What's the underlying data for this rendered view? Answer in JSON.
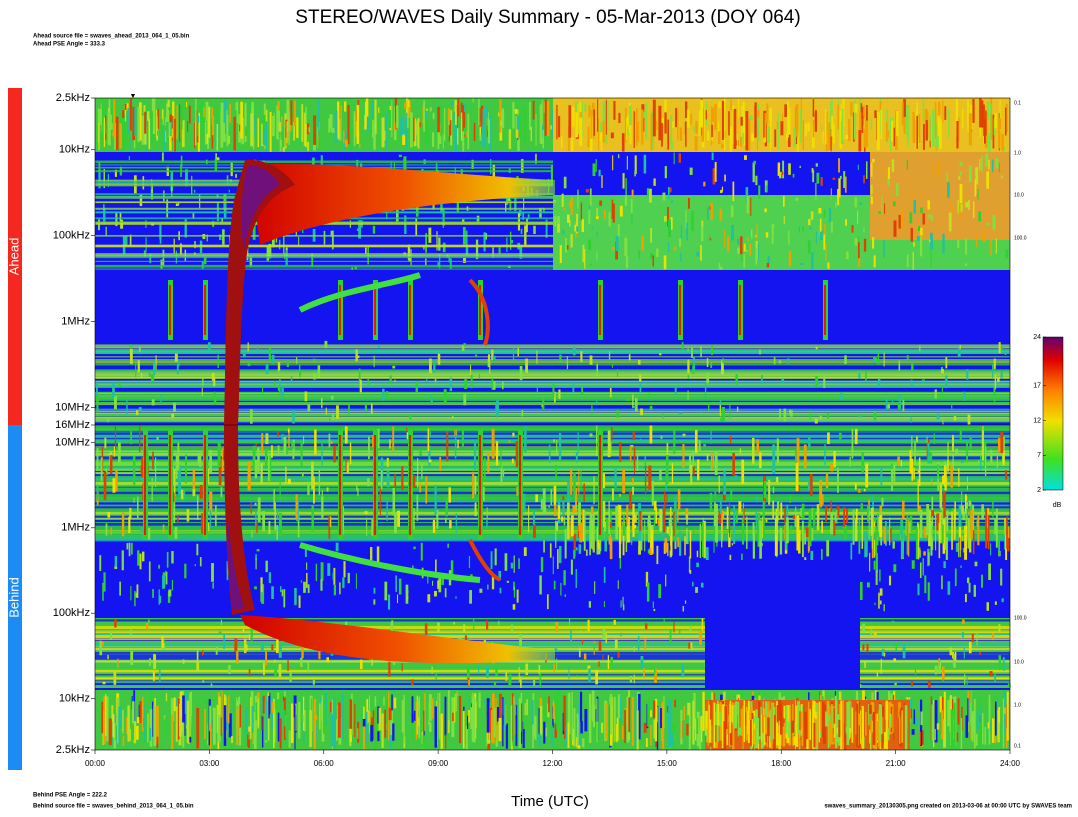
{
  "chart_data": {
    "type": "spectrogram",
    "title": "STEREO/WAVES Daily Summary - 05-Mar-2013 (DOY 064)",
    "header_lines": [
      "Ahead source file = swaves_ahead_2013_064_1_05.bin",
      "Ahead PSE Angle = 333.3"
    ],
    "footer_left": [
      "Behind PSE Angle = 222.2",
      "Behind source file = swaves_behind_2013_064_1_05.bin"
    ],
    "footer_right": "swaves_summary_20130305.png created on 2013-03-06 at 00:00 UTC by SWAVES team",
    "x_label": "Time (UTC)",
    "xlim": [
      0,
      24
    ],
    "xticks": [
      {
        "value": 0,
        "label": "00:00"
      },
      {
        "value": 3,
        "label": "03:00"
      },
      {
        "value": 6,
        "label": "06:00"
      },
      {
        "value": 9,
        "label": "09:00"
      },
      {
        "value": 12,
        "label": "12:00"
      },
      {
        "value": 15,
        "label": "15:00"
      },
      {
        "value": 18,
        "label": "18:00"
      },
      {
        "value": 21,
        "label": "21:00"
      },
      {
        "value": 24,
        "label": "24:00"
      }
    ],
    "log_y": true,
    "panels": [
      {
        "name": "Ahead",
        "color": "#f4281e",
        "ylim": [
          2500,
          16000000
        ],
        "yticks": [
          {
            "value": 2500,
            "label": "2.5kHz"
          },
          {
            "value": 10000,
            "label": "10kHz"
          },
          {
            "value": 100000,
            "label": "100kHz"
          },
          {
            "value": 1000000,
            "label": "1MHz"
          },
          {
            "value": 10000000,
            "label": "10MHz"
          },
          {
            "value": 16000000,
            "label": "16MHz"
          }
        ],
        "right_labels": [
          "0.1",
          "1.0",
          "10.0",
          "100.0"
        ]
      },
      {
        "name": "Behind",
        "color": "#1c8cf4",
        "ylim": [
          16000000,
          2500
        ],
        "yticks": [
          {
            "value": 10000000,
            "label": "10MHz"
          },
          {
            "value": 1000000,
            "label": "1MHz"
          },
          {
            "value": 100000,
            "label": "100kHz"
          },
          {
            "value": 10000,
            "label": "10kHz"
          },
          {
            "value": 2500,
            "label": "2.5kHz"
          }
        ],
        "right_labels": [
          "100.0",
          "10.0",
          "1.0",
          "0.1"
        ]
      }
    ],
    "colorbar": {
      "ylim": [
        2,
        24
      ],
      "yticks": [
        2,
        7,
        12,
        17,
        24
      ],
      "label": "dB"
    }
  }
}
